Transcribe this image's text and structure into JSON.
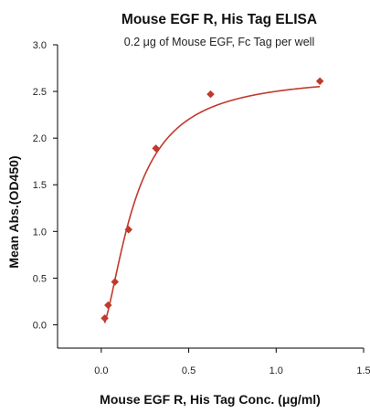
{
  "chart_data": {
    "type": "scatter",
    "title": "Mouse EGF R, His Tag ELISA",
    "subtitle": "0.2 μg of Mouse EGF, Fc Tag per well",
    "xlabel": "Mouse EGF R, His Tag Conc. (μg/ml)",
    "ylabel": "Mean Abs.(OD450)",
    "xlim": [
      -0.25,
      1.5
    ],
    "ylim": [
      -0.25,
      3.0
    ],
    "xticks": [
      0.0,
      0.5,
      1.0,
      1.5
    ],
    "xtick_labels": [
      "0.0",
      "0.5",
      "1.0",
      "1.5"
    ],
    "yticks": [
      0.0,
      0.5,
      1.0,
      1.5,
      2.0,
      2.5,
      3.0
    ],
    "ytick_labels": [
      "0.0",
      "0.5",
      "1.0",
      "1.5",
      "2.0",
      "2.5",
      "3.0"
    ],
    "grid": false,
    "series": [
      {
        "x": [
          0.0195,
          0.039,
          0.078,
          0.156,
          0.3125,
          0.625,
          1.25
        ],
        "y": [
          0.07,
          0.21,
          0.46,
          1.02,
          1.89,
          2.47,
          2.61
        ],
        "marker": "diamond",
        "color": "#c0392b",
        "fit_curve": true
      }
    ]
  }
}
